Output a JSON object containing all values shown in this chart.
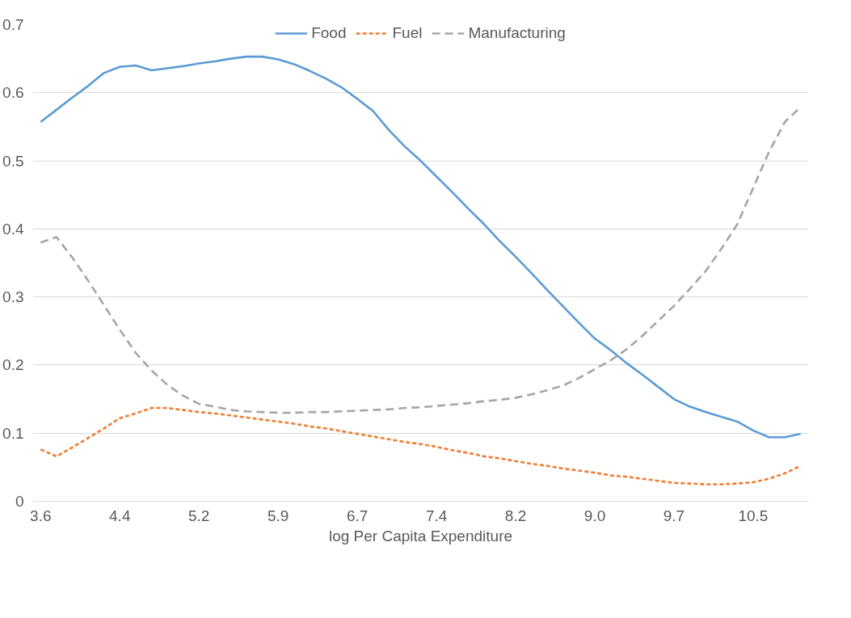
{
  "chart_data": {
    "type": "line",
    "xlabel": "log Per Capita Expenditure",
    "categories": [
      "3.6",
      null,
      null,
      null,
      null,
      "4.4",
      null,
      null,
      null,
      null,
      "5.2",
      null,
      null,
      null,
      null,
      "5.9",
      null,
      null,
      null,
      null,
      "6.7",
      null,
      null,
      null,
      null,
      "7.4",
      null,
      null,
      null,
      null,
      "8.2",
      null,
      null,
      null,
      null,
      "9.0",
      null,
      null,
      null,
      null,
      "9.7",
      null,
      null,
      null,
      null,
      "10.5",
      null,
      null,
      null
    ],
    "series": [
      {
        "name": "Food",
        "color": "#5b9bd5",
        "line_style": "solid",
        "values": [
          0.557,
          0.575,
          0.593,
          0.61,
          0.629,
          0.638,
          0.64,
          0.633,
          0.636,
          0.639,
          0.643,
          0.646,
          0.65,
          0.653,
          0.653,
          0.649,
          0.642,
          0.632,
          0.621,
          0.608,
          0.591,
          0.573,
          0.545,
          0.521,
          0.5,
          0.477,
          0.454,
          0.43,
          0.407,
          0.382,
          0.359,
          0.335,
          0.31,
          0.286,
          0.262,
          0.239,
          0.222,
          0.203,
          0.186,
          0.168,
          0.15,
          0.139,
          0.131,
          0.124,
          0.117,
          0.104,
          0.094,
          0.094,
          0.099
        ]
      },
      {
        "name": "Fuel",
        "color": "#ed7d31",
        "line_style": "dotted",
        "values": [
          0.076,
          0.066,
          0.079,
          0.093,
          0.107,
          0.122,
          0.129,
          0.137,
          0.137,
          0.134,
          0.131,
          0.129,
          0.126,
          0.123,
          0.12,
          0.117,
          0.114,
          0.11,
          0.107,
          0.103,
          0.099,
          0.095,
          0.091,
          0.087,
          0.084,
          0.08,
          0.075,
          0.071,
          0.066,
          0.063,
          0.059,
          0.055,
          0.052,
          0.048,
          0.045,
          0.042,
          0.038,
          0.036,
          0.033,
          0.03,
          0.027,
          0.026,
          0.025,
          0.025,
          0.026,
          0.028,
          0.033,
          0.041,
          0.052
        ]
      },
      {
        "name": "Manufacturing",
        "color": "#a5a5a5",
        "line_style": "dashed",
        "values": [
          0.38,
          0.388,
          0.358,
          0.324,
          0.288,
          0.252,
          0.218,
          0.192,
          0.171,
          0.155,
          0.143,
          0.139,
          0.134,
          0.132,
          0.131,
          0.13,
          0.13,
          0.131,
          0.131,
          0.132,
          0.133,
          0.134,
          0.135,
          0.137,
          0.138,
          0.14,
          0.142,
          0.144,
          0.147,
          0.149,
          0.152,
          0.157,
          0.163,
          0.17,
          0.181,
          0.194,
          0.207,
          0.223,
          0.243,
          0.265,
          0.287,
          0.312,
          0.338,
          0.371,
          0.407,
          0.46,
          0.513,
          0.557,
          0.579
        ]
      }
    ],
    "ylim": [
      0,
      0.7
    ],
    "yticks": [
      0,
      0.1,
      0.2,
      0.3,
      0.4,
      0.5,
      0.6,
      0.7
    ],
    "grid": "y",
    "legend": "top"
  }
}
